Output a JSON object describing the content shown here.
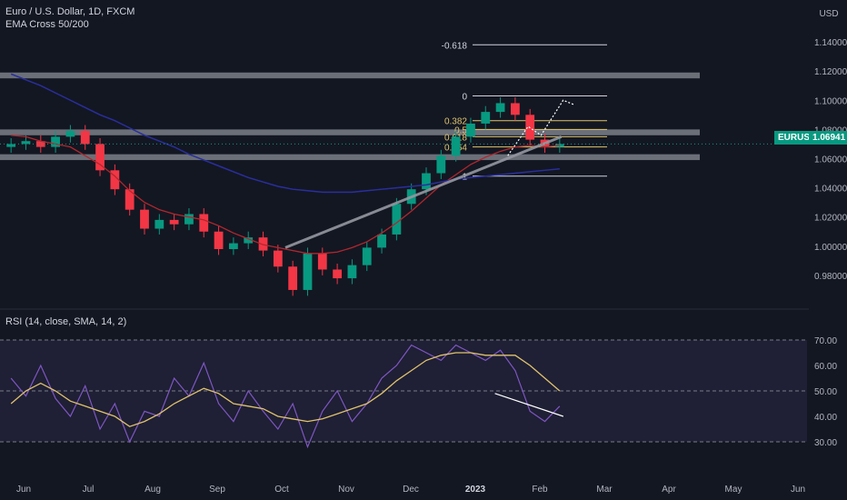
{
  "header": {
    "symbol_line": "Euro / U.S. Dollar, 1D, FXCM",
    "indicator_line": "EMA Cross 50/200",
    "rsi_line": "RSI (14, close, SMA, 14, 2)",
    "currency": "USD",
    "symbol_tag": "EURUSD",
    "price_tag": "1.06941"
  },
  "colors": {
    "background": "#131722",
    "up": "#089981",
    "down": "#f23645",
    "ema50": "#b2272e",
    "ema200": "#2a2e9e",
    "rsi": "#7e57c2",
    "rsi_ma": "#e0c46c",
    "zone": "#8a8d96",
    "text": "#d1d4dc"
  },
  "chart_data": [
    {
      "type": "candlestick",
      "title": "",
      "x_ticks": [
        "Jun",
        "Jul",
        "Aug",
        "Sep",
        "Oct",
        "Nov",
        "Dec",
        "2023",
        "Feb",
        "Mar",
        "Apr",
        "May",
        "Jun"
      ],
      "y_ticks": [
        "1.14000",
        "1.12000",
        "1.10000",
        "1.08000",
        "1.06000",
        "1.04000",
        "1.02000",
        "1.00000",
        "0.98000"
      ],
      "ylim": [
        0.96,
        1.15
      ],
      "grid": false,
      "series": [
        {
          "name": "EMA Cross 50/200",
          "kind": "price",
          "values_y": [
            1.07,
            1.072,
            1.068,
            1.075,
            1.079,
            1.07,
            1.052,
            1.039,
            1.025,
            1.012,
            1.018,
            1.015,
            1.022,
            1.01,
            0.998,
            1.002,
            1.006,
            0.997,
            0.986,
            0.97,
            0.995,
            0.984,
            0.978,
            0.987,
            0.999,
            1.008,
            1.029,
            1.039,
            1.05,
            1.062,
            1.075,
            1.084,
            1.092,
            1.098,
            1.09,
            1.073,
            1.068,
            1.07
          ]
        },
        {
          "name": "",
          "kind": "ema_fast",
          "values_y": [
            1.076,
            1.075,
            1.072,
            1.07,
            1.068,
            1.062,
            1.056,
            1.048,
            1.038,
            1.03,
            1.025,
            1.022,
            1.02,
            1.018,
            1.014,
            1.009,
            1.005,
            1.001,
            0.999,
            0.997,
            0.995,
            0.995,
            0.996,
            0.999,
            1.003,
            1.009,
            1.016,
            1.024,
            1.033,
            1.042,
            1.049,
            1.056,
            1.061,
            1.065,
            1.068,
            1.069,
            1.068,
            1.069
          ]
        },
        {
          "name": "",
          "kind": "ema_slow",
          "values_y": [
            1.118,
            1.114,
            1.11,
            1.105,
            1.1,
            1.095,
            1.09,
            1.086,
            1.081,
            1.076,
            1.072,
            1.068,
            1.063,
            1.059,
            1.055,
            1.051,
            1.047,
            1.044,
            1.041,
            1.039,
            1.038,
            1.037,
            1.037,
            1.037,
            1.038,
            1.039,
            1.04,
            1.041,
            1.042,
            1.044,
            1.046,
            1.047,
            1.048,
            1.049,
            1.05,
            1.051,
            1.052,
            1.053
          ]
        }
      ],
      "zones": [
        {
          "low": 1.115,
          "high": 1.119
        },
        {
          "low": 1.076,
          "high": 1.08
        },
        {
          "low": 1.059,
          "high": 1.063
        }
      ],
      "fib_levels": [
        {
          "label": "-0.618",
          "y": 1.138
        },
        {
          "label": "0",
          "y": 1.103
        },
        {
          "label": "0.382",
          "y": 1.086
        },
        {
          "label": "0.5",
          "y": 1.08
        },
        {
          "label": "0.618",
          "y": 1.075
        },
        {
          "label": "0.764",
          "y": 1.068
        },
        {
          "label": "1",
          "y": 1.048
        }
      ]
    },
    {
      "type": "line",
      "title": "RSI (14, close, SMA, 14, 2)",
      "y_ticks": [
        "70.00",
        "60.00",
        "50.00",
        "40.00",
        "30.00"
      ],
      "ylim": [
        25,
        75
      ],
      "levels": [
        70,
        50,
        30
      ],
      "series": [
        {
          "name": "",
          "kind": "rsi",
          "values": [
            55,
            48,
            60,
            47,
            40,
            52,
            35,
            45,
            30,
            42,
            40,
            55,
            48,
            61,
            45,
            38,
            50,
            42,
            35,
            45,
            28,
            42,
            50,
            38,
            45,
            55,
            60,
            68,
            65,
            62,
            68,
            65,
            62,
            66,
            58,
            42,
            38,
            44
          ]
        },
        {
          "name": "",
          "kind": "rsi_ma",
          "values": [
            45,
            50,
            53,
            50,
            46,
            44,
            42,
            40,
            36,
            38,
            41,
            45,
            48,
            51,
            49,
            45,
            44,
            43,
            40,
            39,
            38,
            39,
            41,
            43,
            45,
            49,
            54,
            58,
            62,
            64,
            65,
            65,
            64,
            64,
            64,
            60,
            55,
            50
          ]
        }
      ]
    }
  ]
}
